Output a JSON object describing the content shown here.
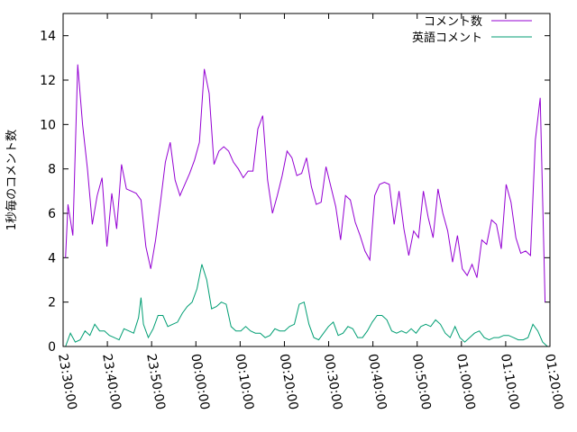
{
  "chart_data": {
    "type": "line",
    "title": "",
    "xlabel": "",
    "ylabel": "1秒毎のコメント数",
    "ylim": [
      0,
      15
    ],
    "yticks": [
      "0",
      "2",
      "4",
      "6",
      "8",
      "10",
      "12",
      "14"
    ],
    "xlim_seconds": [
      0,
      6000
    ],
    "xticks": [
      "23:30:00",
      "23:40:00",
      "23:50:00",
      "00:00:00",
      "00:10:00",
      "00:20:00",
      "00:30:00",
      "00:40:00",
      "00:50:00",
      "01:00:00",
      "01:10:00",
      "01:20:00"
    ],
    "legend_position": "top-right",
    "series": [
      {
        "name": "コメント数",
        "color": "#9400d3",
        "values": [
          [
            30,
            4.0
          ],
          [
            60,
            6.4
          ],
          [
            120,
            5.0
          ],
          [
            180,
            12.7
          ],
          [
            240,
            10.0
          ],
          [
            300,
            8.0
          ],
          [
            360,
            5.5
          ],
          [
            420,
            6.8
          ],
          [
            480,
            7.6
          ],
          [
            540,
            4.5
          ],
          [
            600,
            6.9
          ],
          [
            660,
            5.3
          ],
          [
            720,
            8.2
          ],
          [
            780,
            7.1
          ],
          [
            840,
            7.0
          ],
          [
            900,
            6.9
          ],
          [
            960,
            6.6
          ],
          [
            1020,
            4.5
          ],
          [
            1080,
            3.5
          ],
          [
            1140,
            4.8
          ],
          [
            1200,
            6.5
          ],
          [
            1260,
            8.3
          ],
          [
            1320,
            9.2
          ],
          [
            1380,
            7.5
          ],
          [
            1440,
            6.8
          ],
          [
            1500,
            7.3
          ],
          [
            1560,
            7.8
          ],
          [
            1620,
            8.4
          ],
          [
            1680,
            9.2
          ],
          [
            1740,
            12.5
          ],
          [
            1800,
            11.4
          ],
          [
            1860,
            8.2
          ],
          [
            1920,
            8.8
          ],
          [
            1980,
            9.0
          ],
          [
            2040,
            8.8
          ],
          [
            2100,
            8.3
          ],
          [
            2160,
            8.0
          ],
          [
            2220,
            7.6
          ],
          [
            2280,
            7.9
          ],
          [
            2340,
            7.9
          ],
          [
            2400,
            9.8
          ],
          [
            2460,
            10.4
          ],
          [
            2520,
            7.5
          ],
          [
            2580,
            6.0
          ],
          [
            2640,
            6.8
          ],
          [
            2700,
            7.7
          ],
          [
            2760,
            8.8
          ],
          [
            2820,
            8.5
          ],
          [
            2880,
            7.7
          ],
          [
            2940,
            7.8
          ],
          [
            3000,
            8.5
          ],
          [
            3060,
            7.2
          ],
          [
            3120,
            6.4
          ],
          [
            3180,
            6.5
          ],
          [
            3240,
            8.1
          ],
          [
            3300,
            7.2
          ],
          [
            3360,
            6.3
          ],
          [
            3420,
            4.8
          ],
          [
            3480,
            6.8
          ],
          [
            3540,
            6.6
          ],
          [
            3600,
            5.6
          ],
          [
            3660,
            5.0
          ],
          [
            3720,
            4.3
          ],
          [
            3780,
            3.9
          ],
          [
            3840,
            6.8
          ],
          [
            3900,
            7.3
          ],
          [
            3960,
            7.4
          ],
          [
            4020,
            7.3
          ],
          [
            4080,
            5.5
          ],
          [
            4140,
            7.0
          ],
          [
            4200,
            5.3
          ],
          [
            4260,
            4.1
          ],
          [
            4320,
            5.2
          ],
          [
            4380,
            4.9
          ],
          [
            4440,
            7.0
          ],
          [
            4500,
            5.8
          ],
          [
            4560,
            4.9
          ],
          [
            4620,
            7.1
          ],
          [
            4680,
            6.0
          ],
          [
            4740,
            5.2
          ],
          [
            4800,
            3.8
          ],
          [
            4860,
            5.0
          ],
          [
            4920,
            3.5
          ],
          [
            4980,
            3.2
          ],
          [
            5040,
            3.7
          ],
          [
            5100,
            3.1
          ],
          [
            5160,
            4.8
          ],
          [
            5220,
            4.6
          ],
          [
            5280,
            5.7
          ],
          [
            5340,
            5.5
          ],
          [
            5400,
            4.4
          ],
          [
            5460,
            7.3
          ],
          [
            5520,
            6.5
          ],
          [
            5580,
            4.9
          ],
          [
            5640,
            4.2
          ],
          [
            5700,
            4.3
          ],
          [
            5760,
            4.1
          ],
          [
            5820,
            9.3
          ],
          [
            5880,
            11.2
          ],
          [
            5940,
            2.0
          ]
        ]
      },
      {
        "name": "英語コメント",
        "color": "#009e73",
        "values": [
          [
            30,
            0.0
          ],
          [
            90,
            0.6
          ],
          [
            150,
            0.2
          ],
          [
            210,
            0.3
          ],
          [
            270,
            0.7
          ],
          [
            330,
            0.5
          ],
          [
            390,
            1.0
          ],
          [
            450,
            0.7
          ],
          [
            510,
            0.7
          ],
          [
            570,
            0.5
          ],
          [
            630,
            0.4
          ],
          [
            690,
            0.3
          ],
          [
            750,
            0.8
          ],
          [
            810,
            0.7
          ],
          [
            870,
            0.6
          ],
          [
            930,
            1.3
          ],
          [
            960,
            2.2
          ],
          [
            990,
            1.0
          ],
          [
            1050,
            0.4
          ],
          [
            1110,
            0.8
          ],
          [
            1170,
            1.4
          ],
          [
            1230,
            1.4
          ],
          [
            1290,
            0.9
          ],
          [
            1350,
            1.0
          ],
          [
            1410,
            1.1
          ],
          [
            1470,
            1.5
          ],
          [
            1530,
            1.8
          ],
          [
            1590,
            2.0
          ],
          [
            1650,
            2.6
          ],
          [
            1710,
            3.7
          ],
          [
            1770,
            3.0
          ],
          [
            1830,
            1.7
          ],
          [
            1890,
            1.8
          ],
          [
            1950,
            2.0
          ],
          [
            2010,
            1.9
          ],
          [
            2070,
            0.9
          ],
          [
            2130,
            0.7
          ],
          [
            2190,
            0.7
          ],
          [
            2250,
            0.9
          ],
          [
            2310,
            0.7
          ],
          [
            2370,
            0.6
          ],
          [
            2430,
            0.6
          ],
          [
            2490,
            0.4
          ],
          [
            2550,
            0.5
          ],
          [
            2610,
            0.8
          ],
          [
            2670,
            0.7
          ],
          [
            2730,
            0.7
          ],
          [
            2790,
            0.9
          ],
          [
            2850,
            1.0
          ],
          [
            2910,
            1.9
          ],
          [
            2970,
            2.0
          ],
          [
            3030,
            1.0
          ],
          [
            3090,
            0.4
          ],
          [
            3150,
            0.3
          ],
          [
            3210,
            0.6
          ],
          [
            3270,
            0.9
          ],
          [
            3330,
            1.1
          ],
          [
            3390,
            0.5
          ],
          [
            3450,
            0.6
          ],
          [
            3510,
            0.9
          ],
          [
            3570,
            0.8
          ],
          [
            3630,
            0.4
          ],
          [
            3690,
            0.4
          ],
          [
            3750,
            0.7
          ],
          [
            3810,
            1.1
          ],
          [
            3870,
            1.4
          ],
          [
            3930,
            1.4
          ],
          [
            3990,
            1.2
          ],
          [
            4050,
            0.7
          ],
          [
            4110,
            0.6
          ],
          [
            4170,
            0.7
          ],
          [
            4230,
            0.6
          ],
          [
            4290,
            0.8
          ],
          [
            4350,
            0.6
          ],
          [
            4410,
            0.9
          ],
          [
            4470,
            1.0
          ],
          [
            4530,
            0.9
          ],
          [
            4590,
            1.2
          ],
          [
            4650,
            1.0
          ],
          [
            4710,
            0.6
          ],
          [
            4770,
            0.4
          ],
          [
            4830,
            0.9
          ],
          [
            4890,
            0.4
          ],
          [
            4950,
            0.2
          ],
          [
            5010,
            0.4
          ],
          [
            5070,
            0.6
          ],
          [
            5130,
            0.7
          ],
          [
            5190,
            0.4
          ],
          [
            5250,
            0.3
          ],
          [
            5310,
            0.4
          ],
          [
            5370,
            0.4
          ],
          [
            5430,
            0.5
          ],
          [
            5490,
            0.5
          ],
          [
            5550,
            0.4
          ],
          [
            5610,
            0.3
          ],
          [
            5670,
            0.3
          ],
          [
            5730,
            0.4
          ],
          [
            5790,
            1.0
          ],
          [
            5850,
            0.7
          ],
          [
            5910,
            0.2
          ],
          [
            5970,
            0.0
          ]
        ]
      }
    ]
  }
}
